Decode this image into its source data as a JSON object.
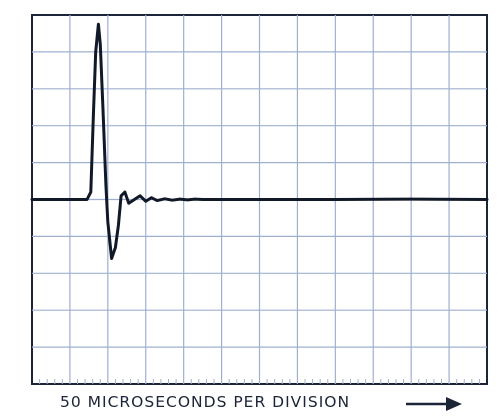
{
  "caption": "50 MICROSECONDS PER DIVISION",
  "colors": {
    "trace": "#111827",
    "grid": "#9fb0cf",
    "frame": "#1c2438"
  },
  "chart_data": {
    "type": "line",
    "title": "",
    "xlabel": "50 MICROSECONDS PER DIVISION",
    "ylabel": "",
    "x_divisions": 12,
    "y_divisions": 10,
    "xlim": [
      0,
      12
    ],
    "ylim": [
      -5,
      5
    ],
    "grid": true,
    "legend": "none",
    "series": [
      {
        "x": [
          0,
          1.45,
          1.55,
          1.62,
          1.68,
          1.75,
          1.8,
          1.87,
          1.95,
          2.0,
          2.1,
          2.2,
          2.28,
          2.35,
          2.45,
          2.55,
          2.7,
          2.85,
          3.0,
          3.15,
          3.3,
          3.5,
          3.7,
          3.9,
          4.1,
          4.3,
          4.5,
          6,
          8,
          10,
          12
        ],
        "y": [
          0,
          0,
          0.2,
          2.3,
          4.0,
          4.75,
          4.2,
          2.5,
          0.4,
          -0.6,
          -1.6,
          -1.3,
          -0.7,
          0.1,
          0.2,
          -0.1,
          0,
          0.1,
          -0.05,
          0.05,
          -0.03,
          0.02,
          -0.02,
          0.01,
          -0.01,
          0.01,
          0,
          0,
          0,
          0.01,
          0
        ]
      }
    ]
  }
}
